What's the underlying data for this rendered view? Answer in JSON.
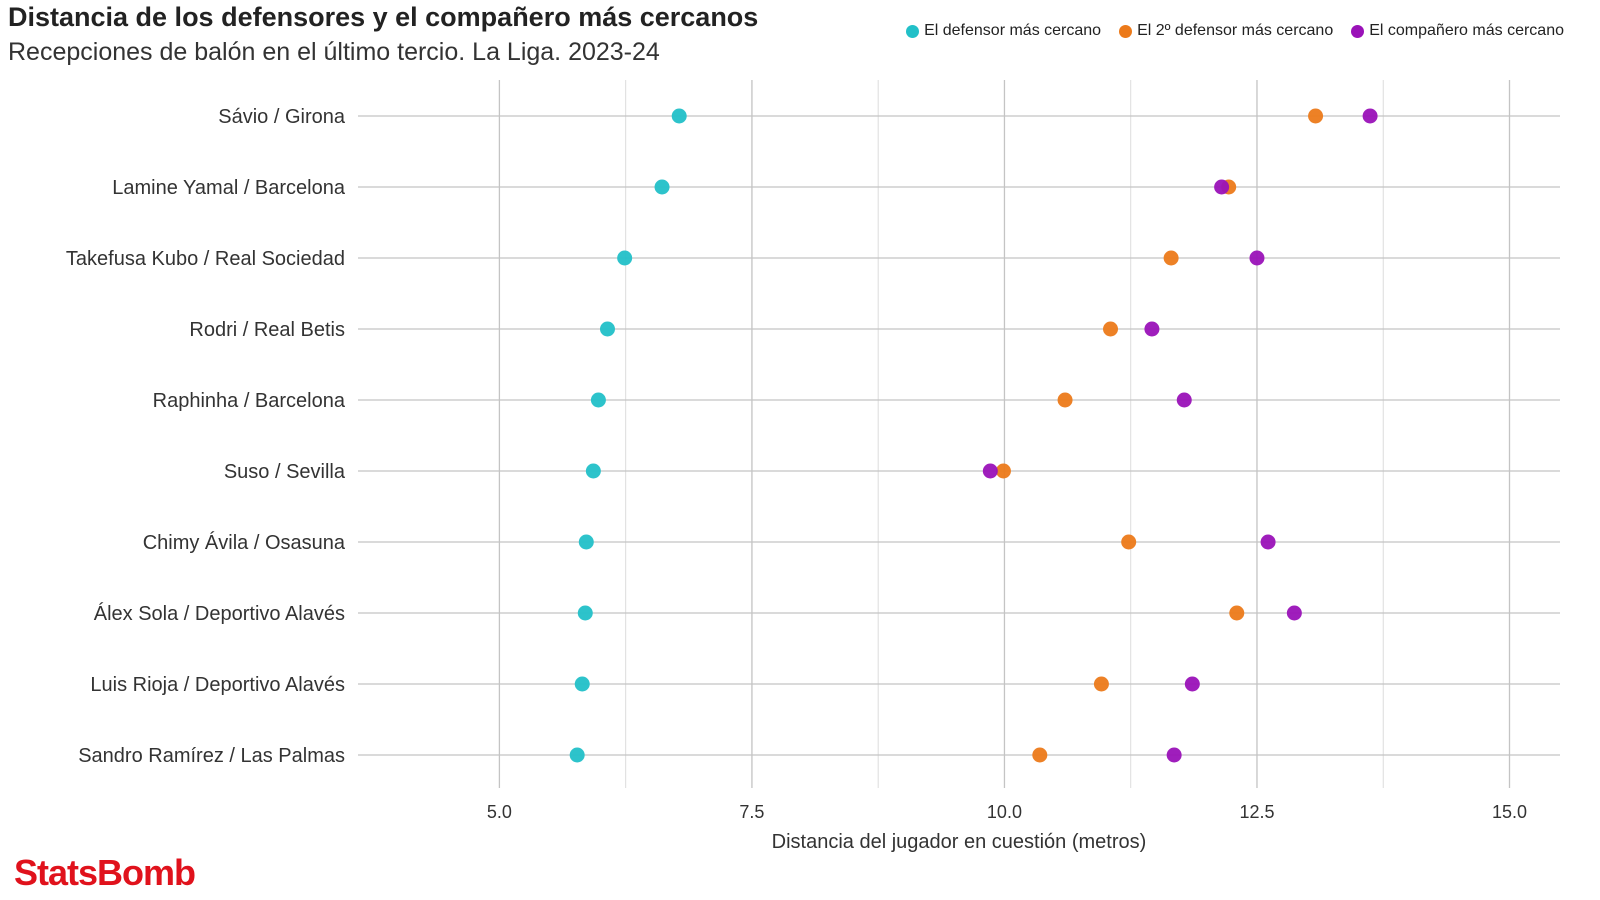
{
  "title": "Distancia de los defensores y el compañero más cercanos",
  "subtitle": "Recepciones de balón en el último tercio. La Liga. 2023-24",
  "brand": "StatsBomb",
  "chart_data": {
    "type": "scatter",
    "title": "Distancia de los defensores y el compañero más cercanos",
    "subtitle": "Recepciones de balón en el último tercio. La Liga. 2023-24",
    "xlabel": "Distancia del jugador en cuestión (metros)",
    "ylabel": "",
    "xlim": [
      3.6,
      15.5
    ],
    "x_ticks": [
      "5.0",
      "7.5",
      "10.0",
      "12.5",
      "15.0"
    ],
    "x_tick_values": [
      5.0,
      7.5,
      10.0,
      12.5,
      15.0
    ],
    "grid": true,
    "legend_position": "top-right",
    "categories": [
      "Sávio / Girona",
      "Lamine Yamal / Barcelona",
      "Takefusa Kubo / Real Sociedad",
      "Rodri / Real Betis",
      "Raphinha / Barcelona",
      "Suso / Sevilla",
      "Chimy Ávila / Osasuna",
      "Álex Sola / Deportivo Alavés",
      "Luis Rioja / Deportivo Alavés",
      "Sandro Ramírez / Las Palmas"
    ],
    "series": [
      {
        "name": "El defensor más cercano",
        "color": "#22c0c8",
        "values": [
          6.78,
          6.61,
          6.24,
          6.07,
          5.98,
          5.93,
          5.86,
          5.85,
          5.82,
          5.77
        ]
      },
      {
        "name": "El 2º defensor más cercano",
        "color": "#ec7a1a",
        "values": [
          13.08,
          12.22,
          11.65,
          11.05,
          10.6,
          9.99,
          11.23,
          12.3,
          10.96,
          10.35
        ]
      },
      {
        "name": "El compañero más cercano",
        "color": "#9a12b8",
        "values": [
          13.62,
          12.15,
          12.5,
          11.46,
          11.78,
          9.86,
          12.61,
          12.87,
          11.86,
          11.68
        ]
      }
    ]
  }
}
